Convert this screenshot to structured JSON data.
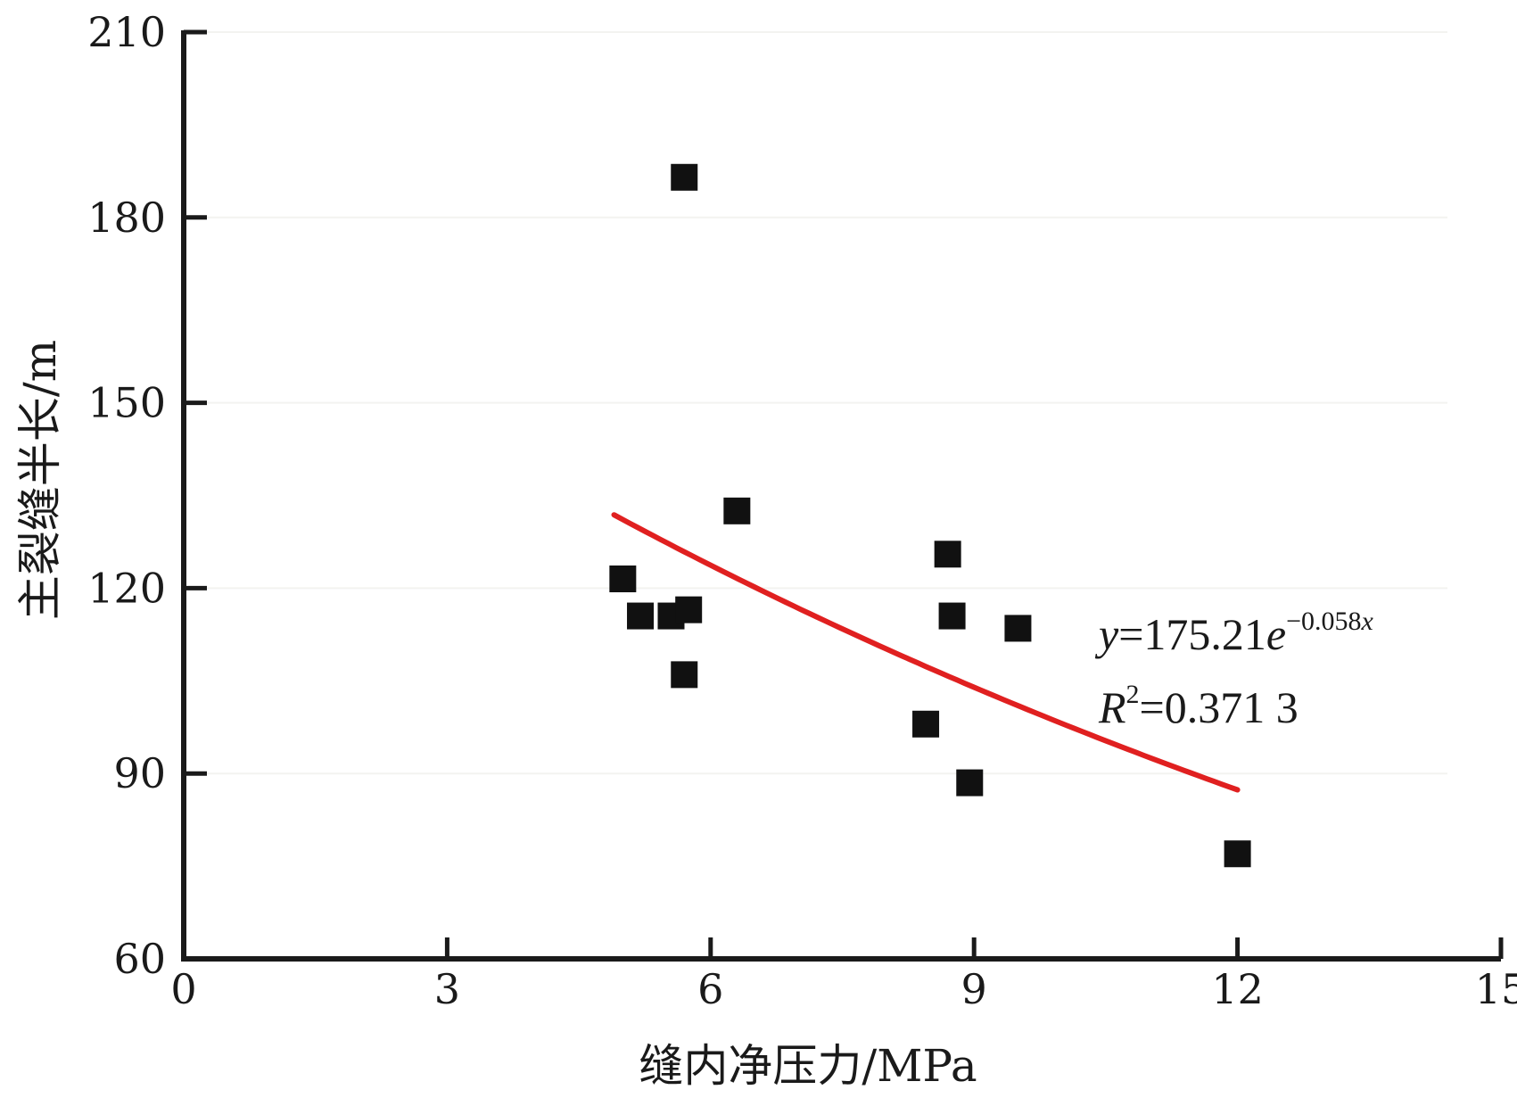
{
  "chart_data": {
    "type": "scatter",
    "xlabel": "缝内净压力/MPa",
    "ylabel": "主裂缝半长/m",
    "xlim": [
      0,
      15
    ],
    "ylim": [
      60,
      210
    ],
    "xticks": [
      "0",
      "3",
      "6",
      "9",
      "12",
      "15"
    ],
    "yticks": [
      "60",
      "90",
      "120",
      "150",
      "180",
      "210"
    ],
    "grid": false,
    "points": [
      {
        "x": 5.0,
        "y": 121.5
      },
      {
        "x": 5.2,
        "y": 115.5
      },
      {
        "x": 5.55,
        "y": 115.5
      },
      {
        "x": 5.75,
        "y": 116.5
      },
      {
        "x": 5.7,
        "y": 106.0
      },
      {
        "x": 5.7,
        "y": 186.5
      },
      {
        "x": 6.3,
        "y": 132.5
      },
      {
        "x": 8.45,
        "y": 98.0
      },
      {
        "x": 8.7,
        "y": 125.5
      },
      {
        "x": 8.75,
        "y": 115.5
      },
      {
        "x": 8.95,
        "y": 88.5
      },
      {
        "x": 9.5,
        "y": 113.5
      },
      {
        "x": 12.0,
        "y": 77.0
      }
    ],
    "trendline": {
      "type": "exponential",
      "a": 175.21,
      "b": -0.058,
      "x_range": [
        4.9,
        12.0
      ],
      "color": "#e02020"
    },
    "marker_color": "#111111",
    "annotation": {
      "equation": {
        "y": "y",
        "eq": "=175.21",
        "e": "e",
        "exp": "−0.058",
        "x": "x"
      },
      "r2": {
        "R": "R",
        "sup": "2",
        "value": "=0.371 3"
      }
    }
  }
}
